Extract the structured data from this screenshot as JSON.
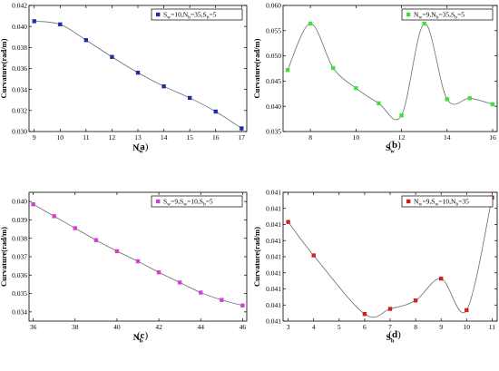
{
  "chart_data": [
    {
      "type": "line",
      "caption": "(a)",
      "xlabel": "N",
      "xlabel_sub": "w",
      "ylabel": "Curvature(rad/m)",
      "xlim": [
        8.8,
        17.2
      ],
      "ylim": [
        0.03,
        0.042
      ],
      "xticks": [
        9,
        10,
        11,
        12,
        13,
        14,
        15,
        16,
        17
      ],
      "yticks": [
        0.03,
        0.032,
        0.034,
        0.036,
        0.038,
        0.04,
        0.042
      ],
      "ytick_labels": [
        "0.030",
        "0.032",
        "0.034",
        "0.036",
        "0.038",
        "0.040",
        "0.042"
      ],
      "legend_position": "top-right",
      "series": [
        {
          "name": "S_w=10,N_b=35,S_b=5",
          "label_parts": [
            [
              "S",
              ""
            ],
            [
              "w",
              "sub"
            ],
            [
              "=10,N",
              ""
            ],
            [
              "b",
              "sub"
            ],
            [
              "=35,S",
              ""
            ],
            [
              "b",
              "sub"
            ],
            [
              "=5",
              ""
            ]
          ],
          "color": "#1f2fa8",
          "marker": "square",
          "x": [
            9,
            10,
            11,
            12,
            13,
            14,
            15,
            16,
            17
          ],
          "y": [
            0.0405,
            0.0402,
            0.0387,
            0.0371,
            0.0356,
            0.0343,
            0.0332,
            0.0319,
            0.0303
          ]
        }
      ]
    },
    {
      "type": "line",
      "caption": "(b)",
      "xlabel": "S",
      "xlabel_sub": "w",
      "ylabel": "Curvature(rad/m)",
      "xlim": [
        6.8,
        16.2
      ],
      "ylim": [
        0.035,
        0.06
      ],
      "xticks": [
        8,
        10,
        12,
        14,
        16
      ],
      "yticks": [
        0.035,
        0.04,
        0.045,
        0.05,
        0.055,
        0.06
      ],
      "ytick_labels": [
        "0.035",
        "0.040",
        "0.045",
        "0.050",
        "0.055",
        "0.060"
      ],
      "legend_position": "top-right",
      "series": [
        {
          "name": "N_w=9,N_b=35,S_b=5",
          "label_parts": [
            [
              "N",
              ""
            ],
            [
              "w",
              "sub"
            ],
            [
              "=9,N",
              ""
            ],
            [
              "b",
              "sub"
            ],
            [
              "=35,S",
              ""
            ],
            [
              "b",
              "sub"
            ],
            [
              "=5",
              ""
            ]
          ],
          "color": "#3fe03f",
          "marker": "square",
          "x": [
            7,
            8,
            9,
            10,
            11,
            12,
            13,
            14,
            15,
            16
          ],
          "y": [
            0.0472,
            0.0564,
            0.0476,
            0.0436,
            0.0406,
            0.0382,
            0.0564,
            0.0414,
            0.0416,
            0.0404
          ]
        }
      ]
    },
    {
      "type": "line",
      "caption": "(c)",
      "xlabel": "N",
      "xlabel_sub": "b",
      "ylabel": "Curvature(rad/m)",
      "xlim": [
        35.8,
        46.2
      ],
      "ylim": [
        0.0335,
        0.0405
      ],
      "xticks": [
        36,
        38,
        40,
        42,
        44,
        46
      ],
      "yticks": [
        0.034,
        0.035,
        0.036,
        0.037,
        0.038,
        0.039,
        0.04
      ],
      "ytick_labels": [
        "0.034",
        "0.035",
        "0.036",
        "0.037",
        "0.038",
        "0.039",
        "0.040"
      ],
      "legend_position": "top-right",
      "series": [
        {
          "name": "S_w=9,S_w=10,S_b=5",
          "label_parts": [
            [
              "S",
              ""
            ],
            [
              "w",
              "sub"
            ],
            [
              "=9,S",
              ""
            ],
            [
              "w",
              "sub"
            ],
            [
              "=10,S",
              ""
            ],
            [
              "b",
              "sub"
            ],
            [
              "=5",
              ""
            ]
          ],
          "color": "#d63fd6",
          "marker": "square",
          "x": [
            36,
            37,
            38,
            39,
            40,
            41,
            42,
            43,
            44,
            45,
            46
          ],
          "y": [
            0.03985,
            0.0392,
            0.03855,
            0.0379,
            0.0373,
            0.03675,
            0.03615,
            0.0356,
            0.03505,
            0.03465,
            0.03435
          ]
        }
      ]
    },
    {
      "type": "line",
      "caption": "(d)",
      "xlabel": "S",
      "xlabel_sub": "b",
      "ylabel": "Curvature(rad/m)",
      "xlim": [
        2.8,
        11.2
      ],
      "ylim": [
        0,
        10
      ],
      "xticks": [
        3,
        4,
        5,
        6,
        7,
        8,
        9,
        10,
        11
      ],
      "yticks": [
        0,
        1.25,
        2.5,
        3.75,
        5,
        6.25,
        7.5,
        8.75,
        10
      ],
      "ytick_labels": [
        "0.041",
        "0.041",
        "0.041",
        "0.041",
        "0.041",
        "0.041",
        "0.041",
        "0.041",
        "0.041"
      ],
      "legend_position": "top-right",
      "series": [
        {
          "name": "N_w=9,S_w=10,N_b=35",
          "label_parts": [
            [
              "N",
              ""
            ],
            [
              "w",
              "sub"
            ],
            [
              "=9,S",
              ""
            ],
            [
              "w",
              "sub"
            ],
            [
              "=10,N",
              ""
            ],
            [
              "b",
              "sub"
            ],
            [
              "=35",
              ""
            ]
          ],
          "color": "#cc2222",
          "marker": "square",
          "x": [
            3,
            4,
            5,
            6,
            7,
            8,
            9,
            10,
            11
          ],
          "y": [
            7.7,
            5.1,
            null,
            0.55,
            0.95,
            1.6,
            3.3,
            0.85,
            9.6
          ]
        }
      ]
    }
  ]
}
